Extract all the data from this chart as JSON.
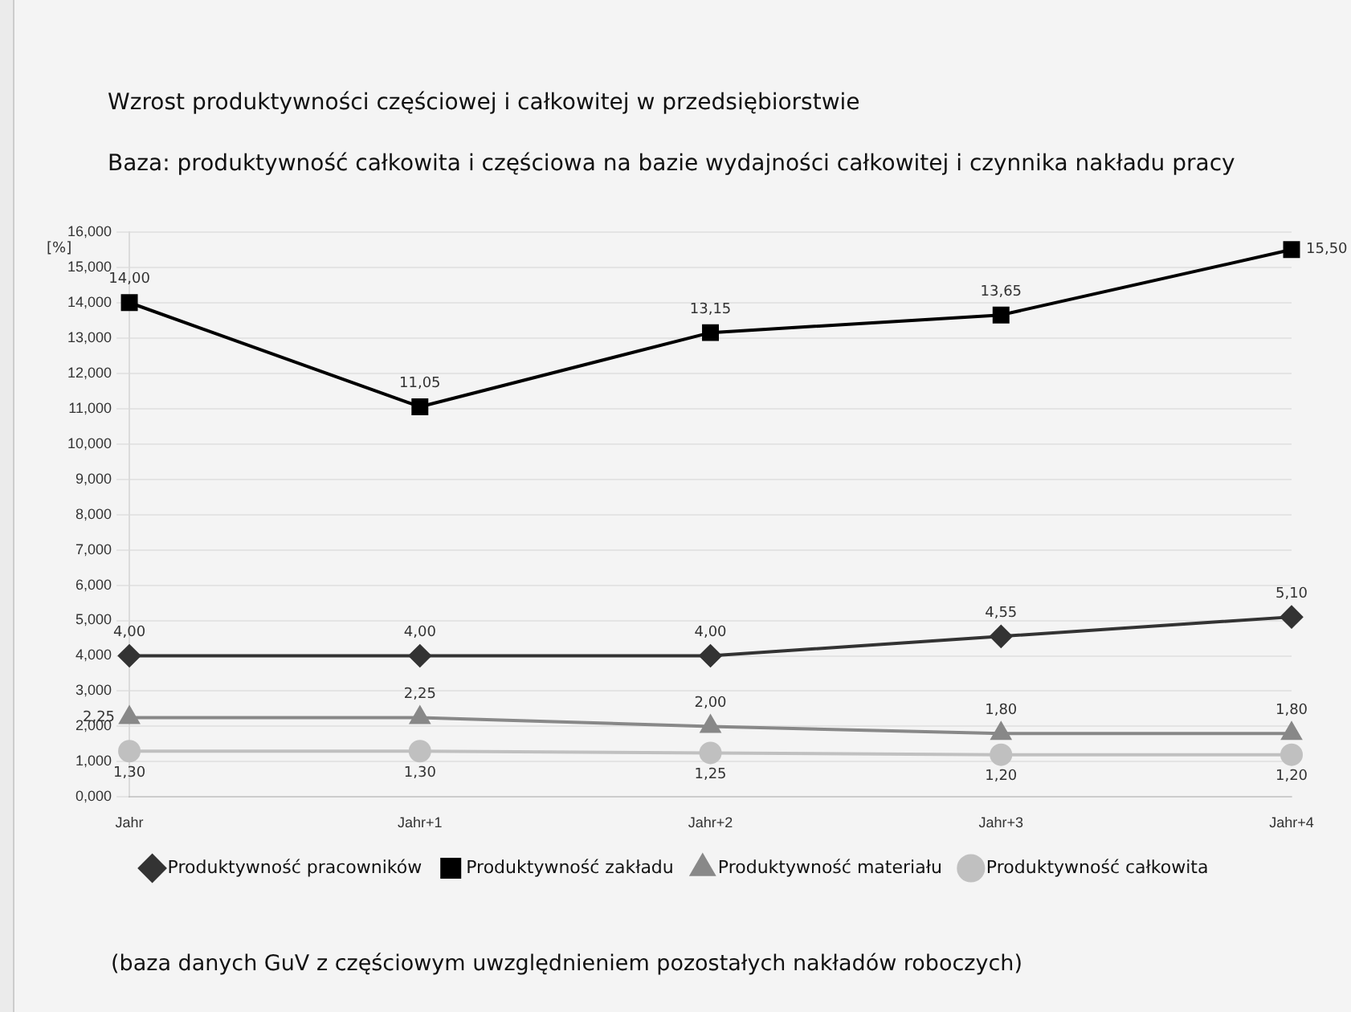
{
  "chart_data": {
    "type": "line",
    "title": "Wzrost produktywności częściowej i całkowitej w przedsiębiorstwie",
    "subtitle": "Baza: produktywność całkowita i częściowa na bazie wydajności całkowitej i czynnika nakładu pracy",
    "ylabel": "[%]",
    "categories": [
      "Jahr",
      "Jahr+1",
      "Jahr+2",
      "Jahr+3",
      "Jahr+4"
    ],
    "series": [
      {
        "name": "Produktywność pracowników",
        "color": "#333333",
        "marker": "diamond",
        "values": [
          4.0,
          4.0,
          4.0,
          4.55,
          5.1
        ],
        "value_labels": [
          "4,00",
          "4,00",
          "4,00",
          "4,55",
          "5,10"
        ]
      },
      {
        "name": "Produktywność zakładu",
        "color": "#000000",
        "marker": "square",
        "values": [
          14.0,
          11.05,
          13.15,
          13.65,
          15.5
        ],
        "value_labels": [
          "14,00",
          "11,05",
          "13,15",
          "13,65",
          "15,50"
        ]
      },
      {
        "name": "Produktywność materiału",
        "color": "#888888",
        "marker": "triangle",
        "values": [
          2.25,
          2.25,
          2.0,
          1.8,
          1.8
        ],
        "value_labels": [
          "2,25",
          "2,25",
          "2,00",
          "1,80",
          "1,80"
        ]
      },
      {
        "name": "Produktywność całkowita",
        "color": "#c0c0c0",
        "marker": "circle",
        "values": [
          1.3,
          1.3,
          1.25,
          1.2,
          1.2
        ],
        "value_labels": [
          "1,30",
          "1,30",
          "1,25",
          "1,20",
          "1,20"
        ]
      }
    ],
    "ylim": [
      0,
      16
    ],
    "yticks": [
      {
        "value": 0,
        "label": "0,000"
      },
      {
        "value": 1,
        "label": "1,000"
      },
      {
        "value": 2,
        "label": "2,000"
      },
      {
        "value": 3,
        "label": "3,000"
      },
      {
        "value": 4,
        "label": "4,000"
      },
      {
        "value": 5,
        "label": "5,000"
      },
      {
        "value": 6,
        "label": "6,000"
      },
      {
        "value": 7,
        "label": "7,000"
      },
      {
        "value": 8,
        "label": "8,000"
      },
      {
        "value": 9,
        "label": "9,000"
      },
      {
        "value": 10,
        "label": "10,000"
      },
      {
        "value": 11,
        "label": "11,000"
      },
      {
        "value": 12,
        "label": "12,000"
      },
      {
        "value": 13,
        "label": "13,000"
      },
      {
        "value": 14,
        "label": "14,000"
      },
      {
        "value": 15,
        "label": "15,000"
      },
      {
        "value": 16,
        "label": "16,000"
      }
    ],
    "grid": "y",
    "legend": "bottom",
    "annotations": [
      "(baza danych GuV z częściowym uwzględnieniem pozostałych nakładów roboczych)"
    ]
  }
}
